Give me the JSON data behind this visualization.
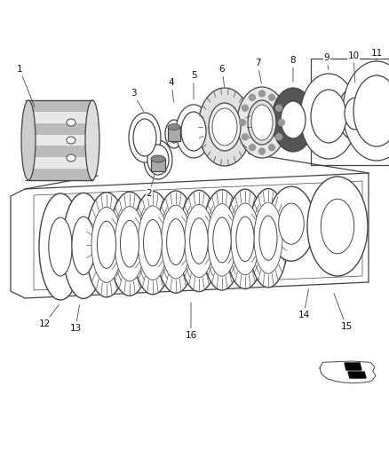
{
  "bg_color": "#ffffff",
  "lc": "#444444",
  "lc_light": "#888888",
  "fig_w": 4.38,
  "fig_h": 5.33,
  "dpi": 100
}
